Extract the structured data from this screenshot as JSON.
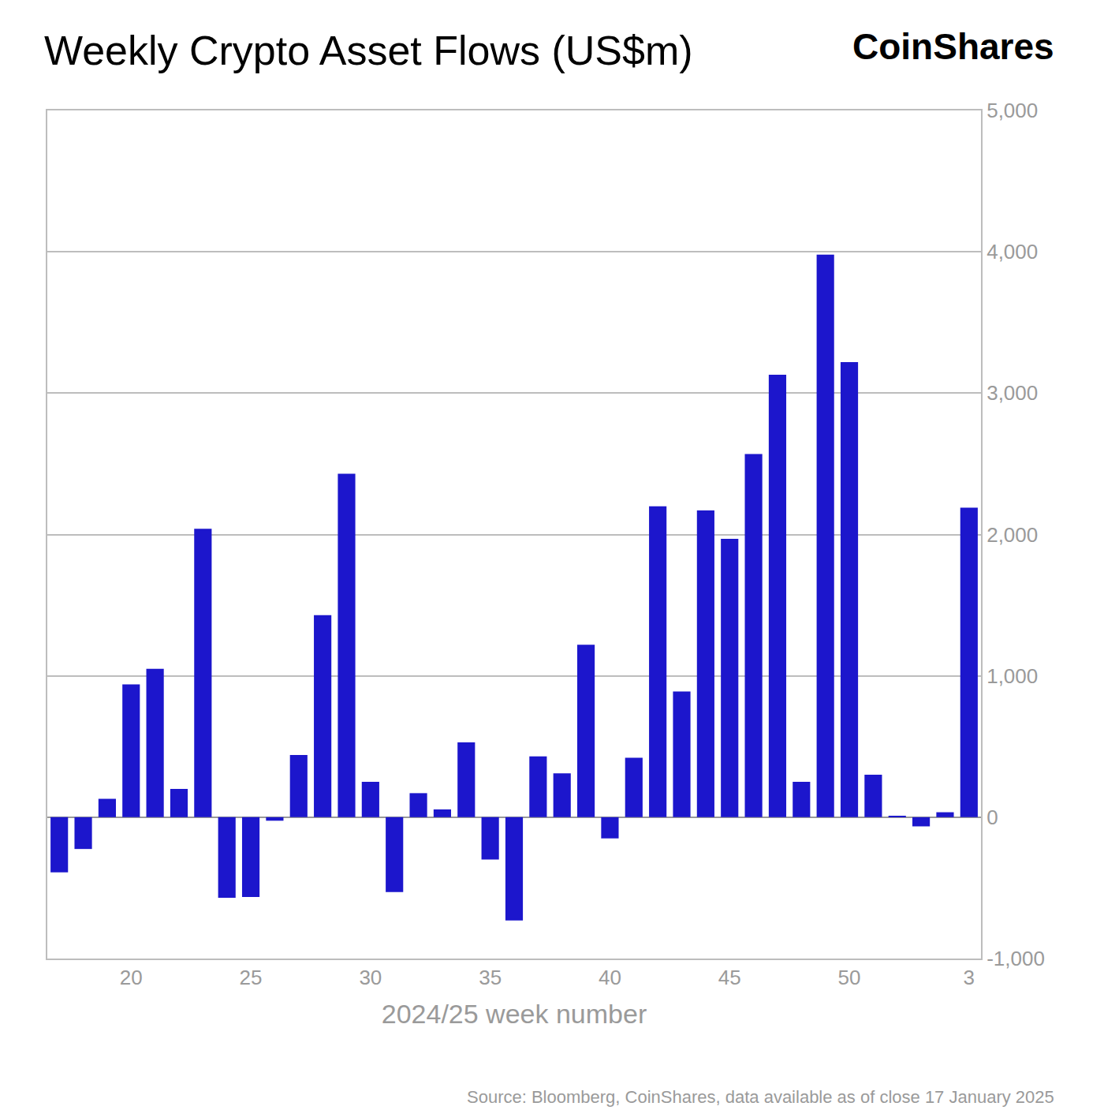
{
  "chart_data": {
    "type": "bar",
    "title": "Weekly Crypto Asset Flows (US$m)",
    "xlabel": "2024/25 week number",
    "annotations": [
      {
        "text": "CoinShares"
      },
      {
        "text": "Source: Bloomberg, CoinShares, data available as of close 17 January 2025"
      }
    ],
    "categories": [
      null,
      null,
      null,
      "20",
      null,
      null,
      null,
      null,
      "25",
      null,
      null,
      null,
      null,
      "30",
      null,
      null,
      null,
      null,
      "35",
      null,
      null,
      null,
      null,
      "40",
      null,
      null,
      null,
      null,
      "45",
      null,
      null,
      null,
      null,
      "50",
      null,
      null,
      null,
      null,
      "3"
    ],
    "values": [
      -390,
      -225,
      130,
      940,
      1050,
      200,
      2040,
      -570,
      -565,
      -25,
      440,
      1430,
      2430,
      250,
      -530,
      170,
      55,
      530,
      -300,
      -730,
      430,
      310,
      1220,
      -150,
      420,
      2200,
      890,
      2170,
      1970,
      2570,
      3130,
      250,
      3980,
      3220,
      300,
      10,
      -65,
      35,
      2190
    ],
    "color": "#1c16cc",
    "ylim": [
      -1000,
      5000
    ],
    "yticks": [
      {
        "value": -1000,
        "label": "-1,000"
      },
      0,
      {
        "value": 1000,
        "label": "1,000"
      },
      {
        "value": 2000,
        "label": "2,000"
      },
      {
        "value": 3000,
        "label": "3,000"
      },
      {
        "value": 4000,
        "label": "4,000"
      },
      {
        "value": 5000,
        "label": "5,000"
      }
    ],
    "grid": true
  }
}
